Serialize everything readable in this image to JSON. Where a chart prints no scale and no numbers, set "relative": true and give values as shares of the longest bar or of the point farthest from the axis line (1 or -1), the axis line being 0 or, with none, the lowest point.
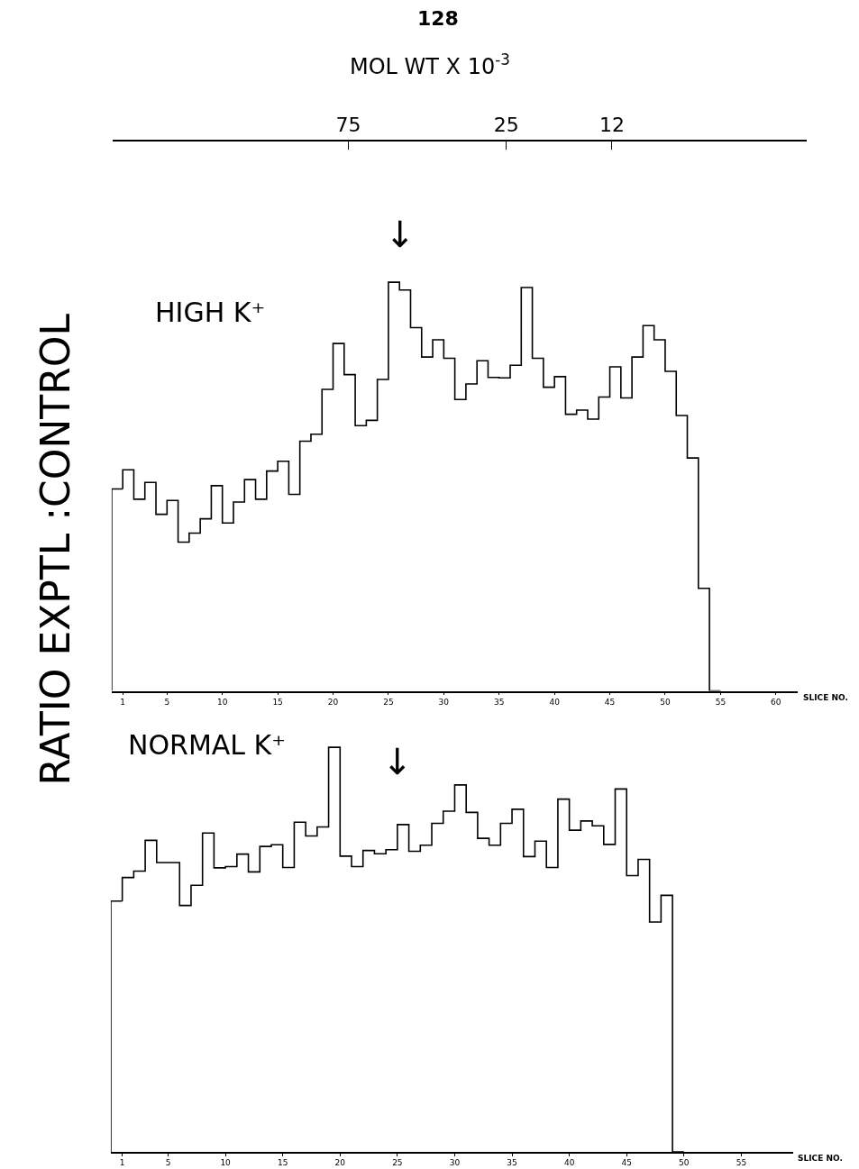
{
  "chart_data": [
    {
      "type": "step",
      "title": "HIGH K⁺",
      "ylabel": "RATIO EXPTL :CONTROL",
      "xlabel": "SLICE NO.",
      "x2label": "MOL WT X 10$^{-3}$",
      "relative": true,
      "color": "#000000",
      "annotations": [
        "128",
        "↓"
      ],
      "x": [
        1,
        2,
        3,
        4,
        5,
        6,
        7,
        8,
        9,
        10,
        11,
        12,
        13,
        14,
        15,
        16,
        17,
        18,
        19,
        20,
        21,
        22,
        23,
        24,
        25,
        26,
        27,
        28,
        29,
        30,
        31,
        32,
        33,
        34,
        35,
        36,
        37,
        38,
        39,
        40,
        41,
        42,
        43,
        44,
        45,
        46,
        47,
        48,
        49,
        50,
        51,
        52,
        53,
        54,
        55
      ],
      "values": [
        0.494,
        0.541,
        0.469,
        0.51,
        0.432,
        0.466,
        0.364,
        0.386,
        0.421,
        0.502,
        0.411,
        0.462,
        0.517,
        0.469,
        0.538,
        0.562,
        0.481,
        0.611,
        0.628,
        0.738,
        0.85,
        0.774,
        0.649,
        0.662,
        0.762,
        1.0,
        0.981,
        0.889,
        0.817,
        0.859,
        0.814,
        0.713,
        0.751,
        0.808,
        0.767,
        0.766,
        0.797,
        0.987,
        0.814,
        0.743,
        0.769,
        0.677,
        0.687,
        0.665,
        0.719,
        0.793,
        0.717,
        0.817,
        0.894,
        0.859,
        0.782,
        0.674,
        0.57,
        0.251,
        0
      ],
      "xlim": [
        0,
        62
      ],
      "xticks": [
        1,
        5,
        10,
        15,
        20,
        25,
        30,
        35,
        40,
        45,
        50,
        55,
        60
      ],
      "log": "x2",
      "x2lim": [
        387,
        3.1
      ],
      "x2ticks": [
        75,
        25,
        12
      ]
    },
    {
      "type": "step",
      "title": "NORMAL K⁺",
      "xlabel": "SLICE NO.",
      "relative": true,
      "color": "#000000",
      "annotations": [
        "↓"
      ],
      "x": [
        1,
        2,
        3,
        4,
        5,
        6,
        7,
        8,
        9,
        10,
        11,
        12,
        13,
        14,
        15,
        16,
        17,
        18,
        19,
        20,
        21,
        22,
        23,
        24,
        25,
        26,
        27,
        28,
        29,
        30,
        31,
        32,
        33,
        34,
        35,
        36,
        37,
        38,
        39,
        40,
        41,
        42,
        43,
        44,
        45,
        46,
        47,
        48,
        49,
        50
      ],
      "values": [
        0.62,
        0.678,
        0.694,
        0.77,
        0.715,
        0.715,
        0.609,
        0.659,
        0.788,
        0.702,
        0.705,
        0.736,
        0.692,
        0.755,
        0.759,
        0.703,
        0.815,
        0.781,
        0.803,
        1.0,
        0.731,
        0.705,
        0.745,
        0.737,
        0.747,
        0.809,
        0.743,
        0.758,
        0.812,
        0.842,
        0.907,
        0.839,
        0.775,
        0.758,
        0.812,
        0.847,
        0.73,
        0.768,
        0.703,
        0.872,
        0.795,
        0.818,
        0.806,
        0.76,
        0.897,
        0.683,
        0.723,
        0.568,
        0.634,
        0
      ],
      "xlim": [
        0,
        59.5
      ],
      "xticks": [
        1,
        5,
        10,
        15,
        20,
        25,
        30,
        35,
        40,
        45,
        50,
        55
      ]
    }
  ]
}
